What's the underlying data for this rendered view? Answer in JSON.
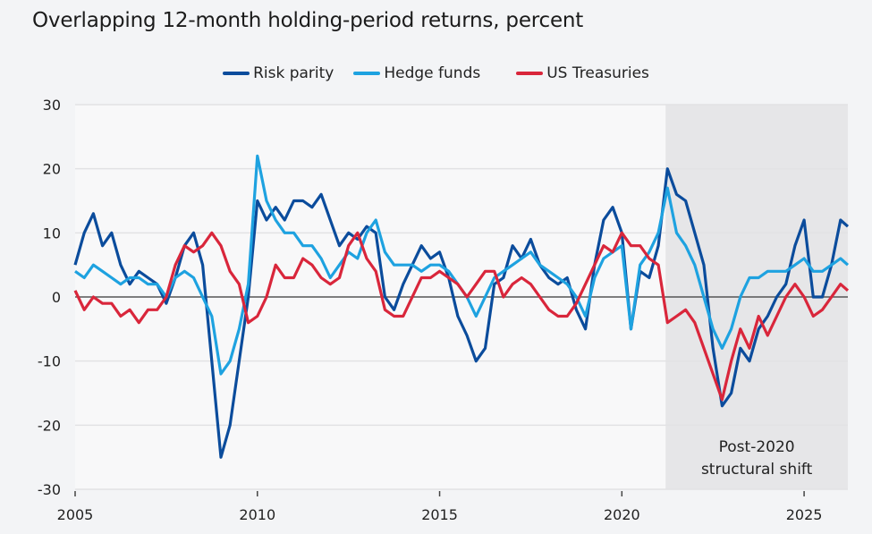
{
  "chart_data": {
    "type": "line",
    "title": "Overlapping 12-month holding-period returns, percent",
    "xlim": [
      2005,
      2026.2
    ],
    "ylim": [
      -30,
      30
    ],
    "xticks": [
      2005,
      2010,
      2015,
      2020,
      2025
    ],
    "yticks": [
      -30,
      -20,
      -10,
      0,
      10,
      20,
      30
    ],
    "grid": true,
    "legend_position": "top-center",
    "shaded_region": {
      "from": 2021.2,
      "to": 2026.2,
      "label_line1": "Post-2020",
      "label_line2": "structural shift",
      "color": "#e6e6e8"
    },
    "x": [
      2005,
      2005.25,
      2005.5,
      2005.75,
      2006,
      2006.25,
      2006.5,
      2006.75,
      2007,
      2007.25,
      2007.5,
      2007.75,
      2008,
      2008.25,
      2008.5,
      2008.75,
      2009,
      2009.25,
      2009.5,
      2009.75,
      2010,
      2010.25,
      2010.5,
      2010.75,
      2011,
      2011.25,
      2011.5,
      2011.75,
      2012,
      2012.25,
      2012.5,
      2012.75,
      2013,
      2013.25,
      2013.5,
      2013.75,
      2014,
      2014.25,
      2014.5,
      2014.75,
      2015,
      2015.25,
      2015.5,
      2015.75,
      2016,
      2016.25,
      2016.5,
      2016.75,
      2017,
      2017.25,
      2017.5,
      2017.75,
      2018,
      2018.25,
      2018.5,
      2018.75,
      2019,
      2019.25,
      2019.5,
      2019.75,
      2020,
      2020.25,
      2020.5,
      2020.75,
      2021,
      2021.25,
      2021.5,
      2021.75,
      2022,
      2022.25,
      2022.5,
      2022.75,
      2023,
      2023.25,
      2023.5,
      2023.75,
      2024,
      2024.25,
      2024.5,
      2024.75,
      2025,
      2025.25,
      2025.5,
      2025.75,
      2026,
      2026.2
    ],
    "series": [
      {
        "name": "Risk parity",
        "color": "#0b4c9c",
        "values": [
          5,
          10,
          13,
          8,
          10,
          5,
          2,
          4,
          3,
          2,
          -1,
          3,
          8,
          10,
          5,
          -10,
          -25,
          -20,
          -10,
          0,
          15,
          12,
          14,
          12,
          15,
          15,
          14,
          16,
          12,
          8,
          10,
          9,
          11,
          10,
          0,
          -2,
          2,
          5,
          8,
          6,
          7,
          3,
          -3,
          -6,
          -10,
          -8,
          2,
          3,
          8,
          6,
          9,
          5,
          3,
          2,
          3,
          -2,
          -5,
          5,
          12,
          14,
          10,
          -5,
          4,
          3,
          8,
          20,
          16,
          15,
          10,
          5,
          -8,
          -17,
          -15,
          -8,
          -10,
          -5,
          -3,
          0,
          2,
          8,
          12,
          0,
          0,
          5,
          12,
          11
        ]
      },
      {
        "name": "Hedge funds",
        "color": "#1ea2e0",
        "values": [
          4,
          3,
          5,
          4,
          3,
          2,
          3,
          3,
          2,
          2,
          0,
          3,
          4,
          3,
          0,
          -3,
          -12,
          -10,
          -5,
          2,
          22,
          15,
          12,
          10,
          10,
          8,
          8,
          6,
          3,
          5,
          7,
          6,
          10,
          12,
          7,
          5,
          5,
          5,
          4,
          5,
          5,
          4,
          2,
          0,
          -3,
          0,
          3,
          4,
          5,
          6,
          7,
          5,
          4,
          3,
          2,
          0,
          -3,
          3,
          6,
          7,
          8,
          -5,
          5,
          7,
          10,
          17,
          10,
          8,
          5,
          0,
          -5,
          -8,
          -5,
          0,
          3,
          3,
          4,
          4,
          4,
          5,
          6,
          4,
          4,
          5,
          6,
          5
        ]
      },
      {
        "name": "US Treasuries",
        "color": "#d9263b",
        "values": [
          1,
          -2,
          0,
          -1,
          -1,
          -3,
          -2,
          -4,
          -2,
          -2,
          0,
          5,
          8,
          7,
          8,
          10,
          8,
          4,
          2,
          -4,
          -3,
          0,
          5,
          3,
          3,
          6,
          5,
          3,
          2,
          3,
          8,
          10,
          6,
          4,
          -2,
          -3,
          -3,
          0,
          3,
          3,
          4,
          3,
          2,
          0,
          2,
          4,
          4,
          0,
          2,
          3,
          2,
          0,
          -2,
          -3,
          -3,
          -1,
          2,
          5,
          8,
          7,
          10,
          8,
          8,
          6,
          5,
          -4,
          -3,
          -2,
          -4,
          -8,
          -12,
          -16,
          -10,
          -5,
          -8,
          -3,
          -6,
          -3,
          0,
          2,
          0,
          -3,
          -2,
          0,
          2,
          1
        ]
      }
    ]
  }
}
